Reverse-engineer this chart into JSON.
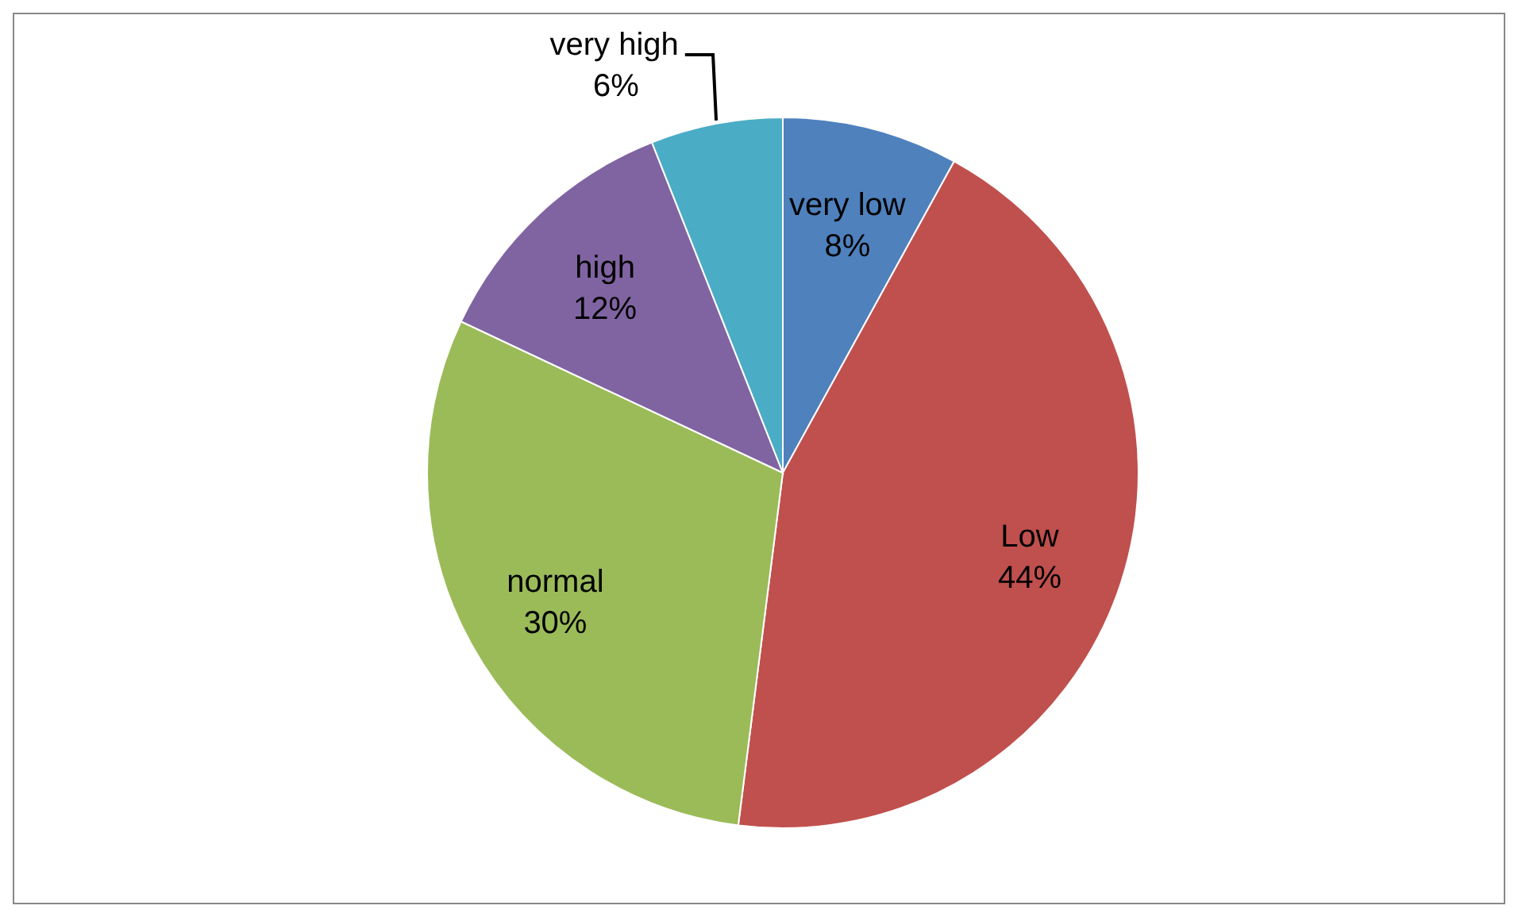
{
  "chart_data": {
    "type": "pie",
    "categories": [
      "very low",
      "Low",
      "normal",
      "high",
      "very high"
    ],
    "values": [
      8,
      44,
      30,
      12,
      6
    ],
    "colors": [
      "#4f81bd",
      "#c0504d",
      "#9bbb59",
      "#8064a2",
      "#4bacc6"
    ],
    "value_labels": [
      "8%",
      "44%",
      "30%",
      "12%",
      "6%"
    ],
    "legend": false
  }
}
